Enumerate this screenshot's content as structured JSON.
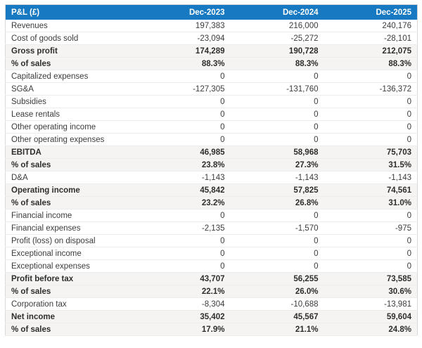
{
  "colors": {
    "header_bg": "#1779c2",
    "header_fg": "#ffffff",
    "highlight_bg": "#f5f4f2",
    "row_fg": "#3c3c3c"
  },
  "table": {
    "columns": [
      "P&L (£)",
      "Dec-2023",
      "Dec-2024",
      "Dec-2025"
    ],
    "rows": [
      {
        "label": "Revenues",
        "values": [
          "197,383",
          "216,000",
          "240,176"
        ],
        "bold": false
      },
      {
        "label": "Cost of goods sold",
        "values": [
          "-23,094",
          "-25,272",
          "-28,101"
        ],
        "bold": false
      },
      {
        "label": "Gross profit",
        "values": [
          "174,289",
          "190,728",
          "212,075"
        ],
        "bold": true
      },
      {
        "label": "% of sales",
        "values": [
          "88.3%",
          "88.3%",
          "88.3%"
        ],
        "bold": true
      },
      {
        "label": "Capitalized expenses",
        "values": [
          "0",
          "0",
          "0"
        ],
        "bold": false
      },
      {
        "label": "SG&A",
        "values": [
          "-127,305",
          "-131,760",
          "-136,372"
        ],
        "bold": false
      },
      {
        "label": "Subsidies",
        "values": [
          "0",
          "0",
          "0"
        ],
        "bold": false
      },
      {
        "label": "Lease rentals",
        "values": [
          "0",
          "0",
          "0"
        ],
        "bold": false
      },
      {
        "label": "Other operating income",
        "values": [
          "0",
          "0",
          "0"
        ],
        "bold": false
      },
      {
        "label": "Other operating expenses",
        "values": [
          "0",
          "0",
          "0"
        ],
        "bold": false
      },
      {
        "label": "EBITDA",
        "values": [
          "46,985",
          "58,968",
          "75,703"
        ],
        "bold": true
      },
      {
        "label": "% of sales",
        "values": [
          "23.8%",
          "27.3%",
          "31.5%"
        ],
        "bold": true
      },
      {
        "label": "D&A",
        "values": [
          "-1,143",
          "-1,143",
          "-1,143"
        ],
        "bold": false
      },
      {
        "label": "Operating income",
        "values": [
          "45,842",
          "57,825",
          "74,561"
        ],
        "bold": true
      },
      {
        "label": "% of sales",
        "values": [
          "23.2%",
          "26.8%",
          "31.0%"
        ],
        "bold": true
      },
      {
        "label": "Financial income",
        "values": [
          "0",
          "0",
          "0"
        ],
        "bold": false
      },
      {
        "label": "Financial expenses",
        "values": [
          "-2,135",
          "-1,570",
          "-975"
        ],
        "bold": false
      },
      {
        "label": "Profit (loss) on disposal",
        "values": [
          "0",
          "0",
          "0"
        ],
        "bold": false
      },
      {
        "label": "Exceptional income",
        "values": [
          "0",
          "0",
          "0"
        ],
        "bold": false
      },
      {
        "label": "Exceptional expenses",
        "values": [
          "0",
          "0",
          "0"
        ],
        "bold": false
      },
      {
        "label": "Profit before tax",
        "values": [
          "43,707",
          "56,255",
          "73,585"
        ],
        "bold": true
      },
      {
        "label": "% of sales",
        "values": [
          "22.1%",
          "26.0%",
          "30.6%"
        ],
        "bold": true
      },
      {
        "label": "Corporation tax",
        "values": [
          "-8,304",
          "-10,688",
          "-13,981"
        ],
        "bold": false
      },
      {
        "label": "Net income",
        "values": [
          "35,402",
          "45,567",
          "59,604"
        ],
        "bold": true
      },
      {
        "label": "% of sales",
        "values": [
          "17.9%",
          "21.1%",
          "24.8%"
        ],
        "bold": true
      }
    ]
  }
}
